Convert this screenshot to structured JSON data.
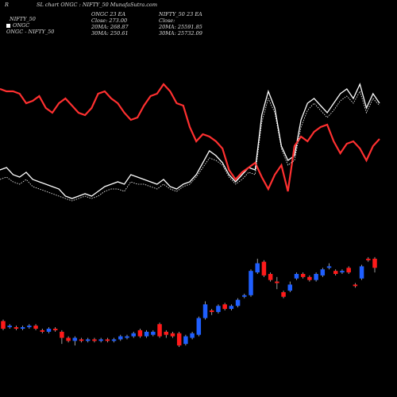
{
  "header": {
    "prefix": "R",
    "title": "SL chart ONGC : NIFTY_50 MunafaSutra.com"
  },
  "legend": [
    "NIFTY_50",
    "ONGC",
    "ONGC - NIFTY_50"
  ],
  "info_ongc": {
    "heading": "ONGC 23 EA",
    "close": "Close: 273.00",
    "ma20": "20MA: 268.87",
    "ma30": "30MA: 250.61"
  },
  "info_nifty": {
    "heading": "NIFTY_50 23 EA",
    "close": "Close:",
    "ma20": "20MA: 25591.85",
    "ma30": "30MA: 25732.09"
  },
  "colors": {
    "background": "#000000",
    "up": "#1f5fff",
    "down": "#ff1a1a",
    "nifty_line": "#ffffff",
    "ongc_line": "#ff3030",
    "ratio_line": "#ffffff"
  },
  "chart_data": {
    "type": "line",
    "x": [
      1,
      2,
      3,
      4,
      5,
      6,
      7,
      8,
      9,
      10,
      11,
      12,
      13,
      14,
      15,
      16,
      17,
      18,
      19,
      20,
      21,
      22,
      23,
      24,
      25,
      26,
      27,
      28,
      29,
      30,
      31,
      32,
      33,
      34,
      35,
      36,
      37,
      38,
      39,
      40,
      41,
      42,
      43,
      44,
      45,
      46,
      47,
      48,
      49,
      50,
      51,
      52,
      53,
      54,
      55,
      56,
      57,
      58,
      59
    ],
    "series": [
      {
        "name": "NIFTY_50",
        "style": "solid-white",
        "values": [
          52,
          53,
          50,
          49,
          51,
          48,
          47,
          46,
          45,
          44,
          41,
          40,
          41,
          42,
          41,
          43,
          45,
          46,
          47,
          46,
          50,
          49,
          48,
          47,
          46,
          48,
          45,
          44,
          46,
          47,
          50,
          55,
          60,
          58,
          55,
          50,
          47,
          50,
          53,
          52,
          75,
          85,
          78,
          62,
          56,
          58,
          73,
          80,
          82,
          79,
          76,
          80,
          84,
          86,
          82,
          88,
          78,
          84,
          80
        ]
      },
      {
        "name": "ONGC",
        "style": "red",
        "values": [
          86,
          85,
          85,
          84,
          80,
          81,
          83,
          78,
          76,
          80,
          82,
          79,
          76,
          75,
          78,
          84,
          85,
          82,
          80,
          76,
          73,
          74,
          79,
          83,
          84,
          88,
          85,
          80,
          79,
          70,
          64,
          67,
          66,
          64,
          61,
          52,
          48,
          51,
          53,
          55,
          49,
          44,
          50,
          54,
          43,
          62,
          66,
          64,
          68,
          70,
          71,
          64,
          59,
          63,
          64,
          61,
          56,
          62,
          65
        ]
      },
      {
        "name": "ONGC - NIFTY_50",
        "style": "dotted-white",
        "values": [
          48,
          49,
          47,
          46,
          48,
          45,
          44,
          43,
          42,
          41,
          40,
          39,
          40,
          41,
          40,
          41,
          43,
          44,
          44,
          43,
          47,
          46,
          46,
          45,
          44,
          46,
          44,
          43,
          45,
          46,
          49,
          53,
          57,
          56,
          54,
          49,
          46,
          48,
          51,
          50,
          72,
          82,
          76,
          61,
          54,
          56,
          70,
          77,
          80,
          77,
          74,
          77,
          81,
          83,
          80,
          85,
          76,
          82,
          79
        ]
      }
    ],
    "candles": [
      {
        "o": 12,
        "c": 7,
        "h": 13,
        "l": 6
      },
      {
        "o": 8,
        "c": 9,
        "h": 10,
        "l": 7
      },
      {
        "o": 8,
        "c": 7,
        "h": 9,
        "l": 6
      },
      {
        "o": 7,
        "c": 8,
        "h": 9,
        "l": 6
      },
      {
        "o": 8,
        "c": 9,
        "h": 10,
        "l": 7
      },
      {
        "o": 9,
        "c": 7,
        "h": 10,
        "l": 6
      },
      {
        "o": 6,
        "c": 5,
        "h": 7,
        "l": 4
      },
      {
        "o": 5,
        "c": 7,
        "h": 8,
        "l": 4
      },
      {
        "o": 7,
        "c": 6,
        "h": 8,
        "l": 5
      },
      {
        "o": 5,
        "c": 1,
        "h": 6,
        "l": -3
      },
      {
        "o": 1,
        "c": -1,
        "h": 2,
        "l": -2
      },
      {
        "o": -1,
        "c": 1,
        "h": 2,
        "l": -4
      },
      {
        "o": 0,
        "c": -1,
        "h": 1,
        "l": -2
      },
      {
        "o": -1,
        "c": 0,
        "h": 1,
        "l": -2
      },
      {
        "o": 0,
        "c": -1,
        "h": 1,
        "l": -2
      },
      {
        "o": -1,
        "c": 0,
        "h": 1,
        "l": -2
      },
      {
        "o": 0,
        "c": -1,
        "h": 1,
        "l": -2
      },
      {
        "o": -1,
        "c": 0,
        "h": 1,
        "l": -2
      },
      {
        "o": 0,
        "c": 2,
        "h": 3,
        "l": -1
      },
      {
        "o": 1,
        "c": 2,
        "h": 3,
        "l": 0
      },
      {
        "o": 2,
        "c": 4,
        "h": 5,
        "l": 1
      },
      {
        "o": 6,
        "c": 2,
        "h": 7,
        "l": 1
      },
      {
        "o": 2,
        "c": 5,
        "h": 6,
        "l": 1
      },
      {
        "o": 3,
        "c": 5,
        "h": 6,
        "l": 2
      },
      {
        "o": 10,
        "c": 2,
        "h": 11,
        "l": 1
      },
      {
        "o": 5,
        "c": 3,
        "h": 6,
        "l": 1
      },
      {
        "o": 4,
        "c": 2,
        "h": 5,
        "l": 1
      },
      {
        "o": 4,
        "c": -4,
        "h": 5,
        "l": -5
      },
      {
        "o": -3,
        "c": 2,
        "h": 3,
        "l": -4
      },
      {
        "o": 1,
        "c": 4,
        "h": 5,
        "l": 0
      },
      {
        "o": 3,
        "c": 14,
        "h": 15,
        "l": 2
      },
      {
        "o": 14,
        "c": 23,
        "h": 25,
        "l": 13
      },
      {
        "o": 19,
        "c": 18,
        "h": 20,
        "l": 16
      },
      {
        "o": 18,
        "c": 22,
        "h": 23,
        "l": 17
      },
      {
        "o": 23,
        "c": 20,
        "h": 24,
        "l": 19
      },
      {
        "o": 20,
        "c": 22,
        "h": 23,
        "l": 19
      },
      {
        "o": 22,
        "c": 26,
        "h": 27,
        "l": 21
      },
      {
        "o": 28,
        "c": 29,
        "h": 30,
        "l": 27
      },
      {
        "o": 29,
        "c": 45,
        "h": 46,
        "l": 28
      },
      {
        "o": 44,
        "c": 50,
        "h": 53,
        "l": 43
      },
      {
        "o": 51,
        "c": 42,
        "h": 52,
        "l": 41
      },
      {
        "o": 43,
        "c": 39,
        "h": 44,
        "l": 38
      },
      {
        "o": 38,
        "c": 37,
        "h": 41,
        "l": 33
      },
      {
        "o": 31,
        "c": 28,
        "h": 32,
        "l": 27
      },
      {
        "o": 32,
        "c": 36,
        "h": 38,
        "l": 31
      },
      {
        "o": 40,
        "c": 43,
        "h": 44,
        "l": 39
      },
      {
        "o": 43,
        "c": 41,
        "h": 44,
        "l": 40
      },
      {
        "o": 41,
        "c": 39,
        "h": 42,
        "l": 38
      },
      {
        "o": 39,
        "c": 43,
        "h": 44,
        "l": 38
      },
      {
        "o": 42,
        "c": 46,
        "h": 47,
        "l": 41
      },
      {
        "o": 47,
        "c": 48,
        "h": 50,
        "l": 46
      },
      {
        "o": 45,
        "c": 43,
        "h": 46,
        "l": 42
      },
      {
        "o": 44,
        "c": 45,
        "h": 46,
        "l": 43
      },
      {
        "o": 47,
        "c": 44,
        "h": 48,
        "l": 43
      },
      {
        "o": 36,
        "c": 35,
        "h": 37,
        "l": 34
      },
      {
        "o": 40,
        "c": 48,
        "h": 49,
        "l": 39
      },
      {
        "o": 53,
        "c": 52,
        "h": 54,
        "l": 51
      },
      {
        "o": 53,
        "c": 47,
        "h": 54,
        "l": 44
      }
    ],
    "xlabel": "",
    "ylabel": "",
    "grid": false
  }
}
